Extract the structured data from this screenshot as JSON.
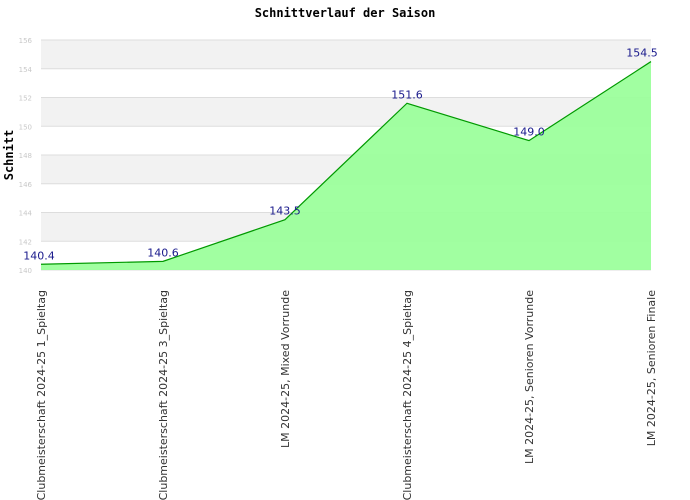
{
  "chart_data": {
    "type": "area",
    "title": "Schnittverlauf der Saison",
    "ylabel": "Schnitt",
    "xlabel": "",
    "ylim": [
      140,
      156
    ],
    "yticks": [
      140,
      142,
      144,
      146,
      148,
      150,
      152,
      154,
      156
    ],
    "grid": true,
    "categories": [
      "Clubmeisterschaft 2024-25   1_Spieltag",
      "Clubmeisterschaft 2024-25   3_Spieltag",
      "LM 2024-25, Mixed Vorrunde",
      "Clubmeisterschaft 2024-25   4_Spieltag",
      "LM 2024-25,  Senioren Vorrunde",
      "LM 2024-25, Senioren Finale"
    ],
    "values": [
      140.4,
      140.6,
      143.5,
      151.6,
      149.0,
      154.5
    ],
    "data_labels": [
      "140.4",
      "140.6",
      "143.5",
      "151.6",
      "149.0",
      "154.5"
    ],
    "colors": {
      "fill": "#99ff99",
      "line": "#009900",
      "band": "#f2f2f2",
      "gridline": "#dddddd",
      "data_label": "#1a1a8c"
    }
  }
}
